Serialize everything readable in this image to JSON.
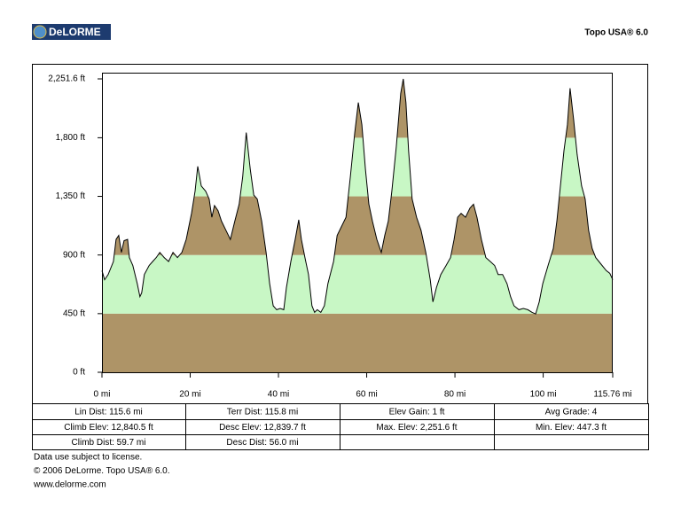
{
  "header": {
    "logo": "DeLORME",
    "product": "Topo USA® 6.0"
  },
  "chart_data": {
    "type": "area",
    "x": [
      0,
      0.6,
      1.4,
      2.6,
      3.2,
      3.8,
      4.4,
      5.0,
      5.8,
      6.2,
      7.0,
      8.0,
      8.6,
      9.0,
      9.6,
      10.7,
      11.5,
      12.3,
      13.1,
      14.1,
      15.1,
      16.1,
      17.1,
      18.1,
      19.1,
      19.7,
      20.3,
      21.1,
      21.7,
      22.5,
      23.5,
      24.3,
      24.9,
      25.5,
      26.3,
      27.1,
      28.1,
      29.1,
      30.1,
      31.1,
      31.9,
      32.7,
      33.6,
      34.4,
      35.2,
      36.2,
      37.2,
      38.0,
      38.8,
      39.6,
      40.4,
      41.2,
      41.8,
      42.8,
      43.8,
      44.6,
      45.2,
      46.0,
      46.8,
      47.6,
      48.2,
      48.8,
      49.6,
      50.4,
      51.2,
      52.5,
      53.3,
      54.3,
      55.3,
      56.3,
      57.3,
      58.1,
      58.9,
      59.7,
      60.5,
      61.3,
      62.3,
      63.3,
      64.1,
      64.9,
      65.7,
      66.7,
      67.7,
      68.3,
      68.9,
      69.5,
      70.3,
      71.3,
      72.3,
      73.4,
      74.4,
      75.0,
      75.8,
      76.8,
      78.0,
      79.0,
      79.8,
      80.6,
      81.4,
      82.4,
      83.4,
      84.2,
      85.0,
      86.0,
      87.0,
      88.0,
      89.0,
      89.8,
      90.8,
      91.8,
      92.6,
      93.4,
      94.5,
      95.5,
      96.5,
      97.5,
      98.3,
      99.1,
      99.9,
      101.1,
      102.3,
      103.1,
      103.9,
      104.7,
      105.5,
      106.1,
      106.9,
      107.7,
      108.7,
      109.5,
      110.3,
      111.1,
      111.9,
      113.1,
      114.3,
      115.1,
      115.76
    ],
    "series": [
      {
        "name": "Elevation",
        "color": "#000000",
        "values": [
          780,
          710,
          750,
          850,
          1020,
          1050,
          920,
          1010,
          1020,
          880,
          820,
          680,
          580,
          610,
          750,
          820,
          850,
          880,
          920,
          880,
          850,
          920,
          880,
          920,
          1020,
          1120,
          1220,
          1390,
          1580,
          1430,
          1390,
          1330,
          1190,
          1280,
          1240,
          1160,
          1090,
          1020,
          1160,
          1290,
          1500,
          1840,
          1560,
          1360,
          1330,
          1160,
          920,
          680,
          510,
          480,
          490,
          480,
          650,
          850,
          1020,
          1170,
          1020,
          880,
          750,
          510,
          460,
          480,
          460,
          510,
          680,
          850,
          1050,
          1120,
          1190,
          1500,
          1840,
          2070,
          1900,
          1560,
          1290,
          1160,
          1020,
          920,
          1050,
          1160,
          1390,
          1730,
          2140,
          2251.6,
          2070,
          1700,
          1330,
          1190,
          1090,
          920,
          710,
          540,
          650,
          750,
          820,
          880,
          1020,
          1190,
          1220,
          1190,
          1260,
          1290,
          1190,
          1020,
          880,
          850,
          820,
          750,
          750,
          680,
          580,
          510,
          480,
          490,
          480,
          460,
          447.3,
          540,
          680,
          820,
          950,
          1160,
          1430,
          1700,
          1900,
          2180,
          1940,
          1670,
          1430,
          1330,
          1090,
          950,
          880,
          830,
          780,
          760,
          710
        ]
      }
    ],
    "xlim": [
      0,
      115.76
    ],
    "ylim": [
      0,
      2251.6
    ],
    "xticks": [
      {
        "value": 0,
        "label": "0 mi"
      },
      {
        "value": 20,
        "label": "20 mi"
      },
      {
        "value": 40,
        "label": "40 mi"
      },
      {
        "value": 60,
        "label": "60 mi"
      },
      {
        "value": 80,
        "label": "80 mi"
      },
      {
        "value": 100,
        "label": "100 mi"
      },
      {
        "value": 115.76,
        "label": "115.76 mi"
      }
    ],
    "yticks": [
      {
        "value": 0,
        "label": "0 ft"
      },
      {
        "value": 450,
        "label": "450 ft"
      },
      {
        "value": 900,
        "label": "900 ft"
      },
      {
        "value": 1350,
        "label": "1,350 ft"
      },
      {
        "value": 1800,
        "label": "1,800 ft"
      },
      {
        "value": 2251.6,
        "label": "2,251.6 ft"
      }
    ],
    "band_colors": [
      "#ae9467",
      "#c8f7c5"
    ]
  },
  "table": {
    "rows": [
      [
        "Lin Dist: 115.6 mi",
        "Terr Dist: 115.8 mi",
        "Elev Gain: 1 ft",
        "Avg Grade: 4"
      ],
      [
        "Climb Elev: 12,840.5 ft",
        "Desc Elev: 12,839.7 ft",
        "Max. Elev: 2,251.6 ft",
        "Min. Elev: 447.3 ft"
      ],
      [
        "Climb Dist: 59.7 mi",
        "Desc Dist: 56.0 mi"
      ]
    ]
  },
  "footer": {
    "lines": [
      "Data use subject to license.",
      "© 2006 DeLorme. Topo USA® 6.0.",
      "www.delorme.com"
    ]
  }
}
